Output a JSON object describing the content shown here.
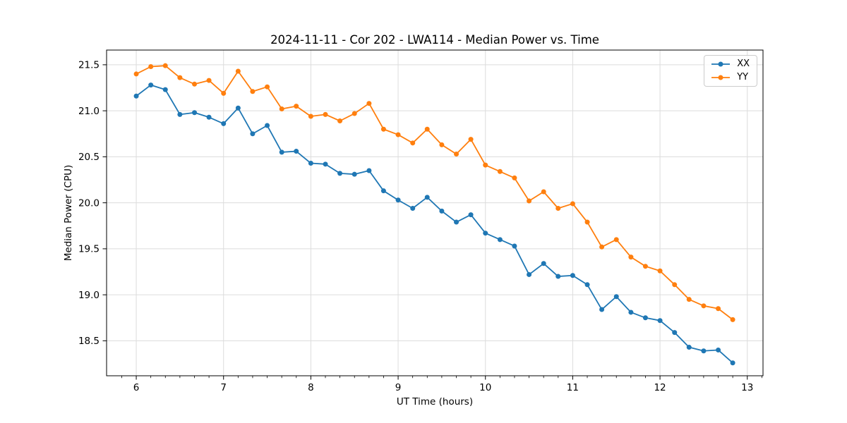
{
  "chart_data": {
    "type": "line",
    "title": "2024-11-11 - Cor 202 - LWA114 - Median Power vs. Time",
    "xlabel": "UT Time (hours)",
    "ylabel": "Median Power (CPU)",
    "xlim": [
      5.66,
      13.18
    ],
    "ylim": [
      18.12,
      21.66
    ],
    "x_major_ticks": [
      6,
      7,
      8,
      9,
      10,
      11,
      12,
      13
    ],
    "x_minor_step": 0.1667,
    "y_major_ticks": [
      18.5,
      19.0,
      19.5,
      20.0,
      20.5,
      21.0,
      21.5
    ],
    "grid": true,
    "legend_position": "upper right",
    "marker": "o",
    "x": [
      6,
      6.167,
      6.333,
      6.5,
      6.667,
      6.833,
      7,
      7.167,
      7.333,
      7.5,
      7.667,
      7.833,
      8,
      8.167,
      8.333,
      8.5,
      8.667,
      8.833,
      9,
      9.167,
      9.333,
      9.5,
      9.667,
      9.833,
      10,
      10.167,
      10.333,
      10.5,
      10.667,
      10.833,
      11,
      11.167,
      11.333,
      11.5,
      11.667,
      11.833,
      12,
      12.167,
      12.333,
      12.5,
      12.667,
      12.833
    ],
    "series": [
      {
        "name": "XX",
        "color": "#1f77b4",
        "values": [
          21.16,
          21.28,
          21.23,
          20.96,
          20.98,
          20.93,
          20.86,
          21.03,
          20.75,
          20.84,
          20.55,
          20.56,
          20.43,
          20.42,
          20.32,
          20.31,
          20.35,
          20.13,
          20.03,
          19.94,
          20.06,
          19.91,
          19.79,
          19.87,
          19.67,
          19.6,
          19.53,
          19.22,
          19.34,
          19.2,
          19.21,
          19.11,
          18.84,
          18.98,
          18.81,
          18.75,
          18.72,
          18.59,
          18.43,
          18.39,
          18.4,
          18.26
        ]
      },
      {
        "name": "YY",
        "color": "#ff7f0e",
        "values": [
          21.4,
          21.48,
          21.49,
          21.36,
          21.29,
          21.33,
          21.19,
          21.43,
          21.21,
          21.26,
          21.02,
          21.05,
          20.94,
          20.96,
          20.89,
          20.97,
          21.08,
          20.8,
          20.74,
          20.65,
          20.8,
          20.63,
          20.53,
          20.69,
          20.41,
          20.34,
          20.27,
          20.02,
          20.12,
          19.94,
          19.99,
          19.79,
          19.52,
          19.6,
          19.41,
          19.31,
          19.26,
          19.11,
          18.95,
          18.88,
          18.85,
          18.73
        ]
      }
    ]
  }
}
